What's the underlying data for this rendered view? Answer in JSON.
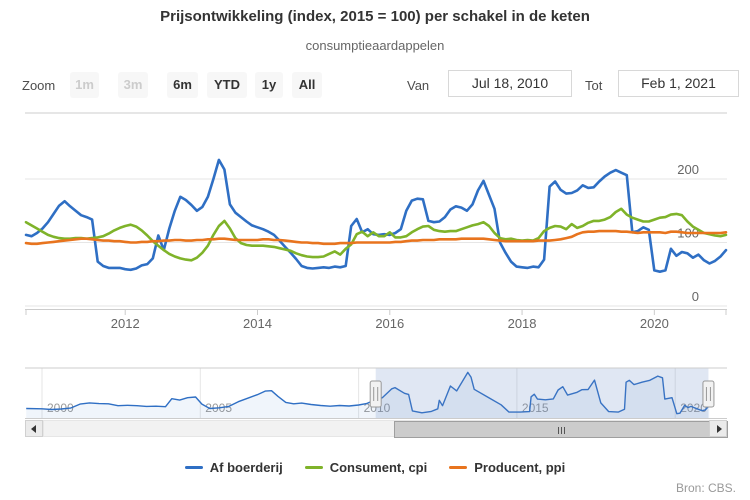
{
  "header": {
    "title": "Prijsontwikkeling (index, 2015 = 100) per schakel in de keten",
    "subtitle": "consumptieaardappelen"
  },
  "range_selector": {
    "zoom_label": "Zoom",
    "buttons": [
      {
        "label": "1m",
        "enabled": false
      },
      {
        "label": "3m",
        "enabled": false
      },
      {
        "label": "6m",
        "enabled": true
      },
      {
        "label": "YTD",
        "enabled": true
      },
      {
        "label": "1y",
        "enabled": true
      },
      {
        "label": "All",
        "enabled": true
      }
    ],
    "from_label": "Van",
    "from_value": "Jul 18, 2010",
    "to_label": "Tot",
    "to_value": "Feb 1, 2021"
  },
  "footer": {
    "source": "Bron: CBS."
  },
  "colors": {
    "blue": "#2f6fc4",
    "green": "#7fb32a",
    "orange": "#e8741e"
  },
  "chart_data": {
    "type": "line",
    "title": "Prijsontwikkeling (index, 2015 = 100) per schakel in de keten",
    "subtitle": "consumptieaardappelen",
    "interval": "monthly",
    "x_start": "2010-07",
    "x_end": "2021-02",
    "ylim": [
      0,
      310
    ],
    "grid": true,
    "legend_position": "bottom",
    "yticks": [
      {
        "label": "0",
        "value": 0
      },
      {
        "label": "100",
        "value": 100
      },
      {
        "label": "200",
        "value": 200
      }
    ],
    "xticks": [
      {
        "label": "2012",
        "month": 18
      },
      {
        "label": "2014",
        "month": 42
      },
      {
        "label": "2016",
        "month": 66
      },
      {
        "label": "2018",
        "month": 90
      },
      {
        "label": "2020",
        "month": 114
      }
    ],
    "series": [
      {
        "name": "Af boerderij",
        "color": "#2f6fc4",
        "values": [
          112,
          110,
          115,
          122,
          132,
          145,
          158,
          165,
          157,
          150,
          143,
          140,
          136,
          70,
          63,
          60,
          60,
          60,
          58,
          57,
          59,
          64,
          66,
          75,
          111,
          88,
          122,
          150,
          172,
          167,
          159,
          150,
          156,
          172,
          200,
          230,
          215,
          160,
          147,
          140,
          133,
          127,
          124,
          121,
          117,
          112,
          103,
          93,
          84,
          74,
          63,
          60,
          59,
          60,
          61,
          60,
          62,
          61,
          63,
          126,
          137,
          116,
          121,
          113,
          112,
          113,
          112,
          115,
          121,
          150,
          166,
          169,
          168,
          134,
          132,
          133,
          140,
          152,
          157,
          155,
          150,
          160,
          182,
          197,
          175,
          153,
          100,
          84,
          70,
          62,
          61,
          60,
          62,
          61,
          73,
          188,
          196,
          183,
          177,
          178,
          182,
          190,
          186,
          187,
          196,
          204,
          210,
          214,
          210,
          206,
          116,
          118,
          124,
          120,
          56,
          54,
          56,
          90,
          79,
          85,
          83,
          76,
          81,
          72,
          67,
          71,
          78,
          88
        ]
      },
      {
        "name": "Consument, cpi",
        "color": "#7fb32a",
        "values": [
          132,
          127,
          122,
          117,
          112,
          109,
          107,
          106,
          106,
          107,
          107,
          106,
          107,
          108,
          110,
          114,
          119,
          123,
          126,
          128,
          125,
          119,
          111,
          102,
          95,
          88,
          82,
          78,
          75,
          73,
          72,
          76,
          84,
          95,
          112,
          126,
          134,
          122,
          107,
          99,
          96,
          95,
          95,
          95,
          94,
          93,
          91,
          89,
          87,
          83,
          80,
          78,
          77,
          77,
          78,
          82,
          86,
          81,
          90,
          97,
          113,
          117,
          110,
          116,
          110,
          110,
          116,
          108,
          108,
          110,
          116,
          121,
          125,
          126,
          120,
          118,
          117,
          118,
          118,
          121,
          124,
          127,
          129,
          132,
          126,
          115,
          107,
          105,
          106,
          104,
          103,
          104,
          103,
          107,
          118,
          123,
          126,
          125,
          121,
          129,
          123,
          126,
          131,
          134,
          134,
          136,
          140,
          148,
          153,
          144,
          139,
          136,
          133,
          133,
          136,
          139,
          140,
          144,
          145,
          143,
          133,
          125,
          120,
          115,
          113,
          111,
          110,
          112
        ]
      },
      {
        "name": "Producent, ppi",
        "color": "#e8741e",
        "values": [
          99,
          98,
          98,
          99,
          100,
          101,
          102,
          103,
          104,
          105,
          106,
          106,
          105,
          104,
          103,
          103,
          102,
          102,
          101,
          100,
          100,
          101,
          101,
          102,
          102,
          103,
          103,
          104,
          104,
          103,
          103,
          104,
          104,
          105,
          105,
          106,
          106,
          105,
          104,
          104,
          104,
          104,
          104,
          105,
          105,
          104,
          104,
          103,
          102,
          101,
          100,
          100,
          99,
          99,
          98,
          98,
          98,
          99,
          99,
          99,
          100,
          100,
          100,
          100,
          100,
          100,
          100,
          101,
          101,
          102,
          103,
          103,
          104,
          104,
          104,
          105,
          105,
          105,
          105,
          106,
          106,
          106,
          106,
          106,
          105,
          104,
          103,
          102,
          102,
          102,
          102,
          102,
          102,
          103,
          103,
          103,
          104,
          105,
          107,
          109,
          113,
          116,
          117,
          117,
          118,
          118,
          118,
          118,
          117,
          117,
          116,
          115,
          116,
          116,
          116,
          116,
          115,
          117,
          117,
          116,
          115,
          115,
          115,
          115,
          115,
          115,
          115,
          116
        ]
      }
    ],
    "navigator": {
      "series_name": "Af boerderij",
      "x_start": 1999.5,
      "x_end": 2021.1,
      "ylim": [
        40,
        240
      ],
      "xticks": [
        {
          "label": "2000",
          "year": 2000
        },
        {
          "label": "2005",
          "year": 2005
        },
        {
          "label": "2010",
          "year": 2010
        },
        {
          "label": "2015",
          "year": 2015
        },
        {
          "label": "2020",
          "year": 2020
        }
      ],
      "selected_range": [
        2010.54,
        2021.05
      ],
      "points": [
        [
          1999.5,
          76
        ],
        [
          2000,
          75
        ],
        [
          2000.3,
          72
        ],
        [
          2000.6,
          74
        ],
        [
          2000.9,
          78
        ],
        [
          2001.2,
          95
        ],
        [
          2001.5,
          100
        ],
        [
          2001.8,
          97
        ],
        [
          2002.1,
          96
        ],
        [
          2002.4,
          88
        ],
        [
          2002.7,
          90
        ],
        [
          2003,
          88
        ],
        [
          2003.3,
          85
        ],
        [
          2003.6,
          86
        ],
        [
          2003.9,
          84
        ],
        [
          2004.1,
          118
        ],
        [
          2004.35,
          112
        ],
        [
          2004.6,
          122
        ],
        [
          2004.85,
          125
        ],
        [
          2005.05,
          95
        ],
        [
          2005.3,
          76
        ],
        [
          2005.6,
          79
        ],
        [
          2005.9,
          85
        ],
        [
          2006.2,
          105
        ],
        [
          2006.5,
          120
        ],
        [
          2006.8,
          135
        ],
        [
          2007.05,
          150
        ],
        [
          2007.25,
          152
        ],
        [
          2007.45,
          128
        ],
        [
          2007.7,
          102
        ],
        [
          2007.95,
          96
        ],
        [
          2008.2,
          99
        ],
        [
          2008.5,
          93
        ],
        [
          2008.8,
          89
        ],
        [
          2009.1,
          86
        ],
        [
          2009.4,
          89
        ],
        [
          2009.7,
          87
        ],
        [
          2010,
          91
        ],
        [
          2010.25,
          97
        ],
        [
          2010.5,
          112
        ],
        [
          2010.75,
          122
        ],
        [
          2011.05,
          160
        ],
        [
          2011.15,
          165
        ],
        [
          2011.45,
          141
        ],
        [
          2011.58,
          136
        ],
        [
          2011.7,
          66
        ],
        [
          2012.0,
          58
        ],
        [
          2012.3,
          64
        ],
        [
          2012.5,
          75
        ],
        [
          2012.55,
          111
        ],
        [
          2012.65,
          88
        ],
        [
          2012.9,
          172
        ],
        [
          2013.1,
          151
        ],
        [
          2013.45,
          230
        ],
        [
          2013.55,
          210
        ],
        [
          2013.65,
          158
        ],
        [
          2014.1,
          123
        ],
        [
          2014.5,
          92
        ],
        [
          2014.75,
          61
        ],
        [
          2015.1,
          61
        ],
        [
          2015.4,
          63
        ],
        [
          2015.45,
          126
        ],
        [
          2015.55,
          137
        ],
        [
          2015.65,
          116
        ],
        [
          2015.9,
          113
        ],
        [
          2016.15,
          117
        ],
        [
          2016.3,
          155
        ],
        [
          2016.45,
          169
        ],
        [
          2016.6,
          133
        ],
        [
          2016.9,
          145
        ],
        [
          2017.05,
          156
        ],
        [
          2017.25,
          157
        ],
        [
          2017.45,
          197
        ],
        [
          2017.65,
          100
        ],
        [
          2017.9,
          63
        ],
        [
          2018.2,
          61
        ],
        [
          2018.4,
          73
        ],
        [
          2018.45,
          188
        ],
        [
          2018.55,
          196
        ],
        [
          2018.7,
          178
        ],
        [
          2018.95,
          188
        ],
        [
          2019.2,
          196
        ],
        [
          2019.45,
          214
        ],
        [
          2019.6,
          207
        ],
        [
          2019.67,
          116
        ],
        [
          2019.9,
          122
        ],
        [
          2020.05,
          54
        ],
        [
          2020.15,
          56
        ],
        [
          2020.3,
          90
        ],
        [
          2020.4,
          80
        ],
        [
          2020.5,
          85
        ],
        [
          2020.65,
          77
        ],
        [
          2020.85,
          67
        ],
        [
          2020.95,
          70
        ],
        [
          2021.0,
          78
        ],
        [
          2021.08,
          88
        ]
      ]
    }
  }
}
